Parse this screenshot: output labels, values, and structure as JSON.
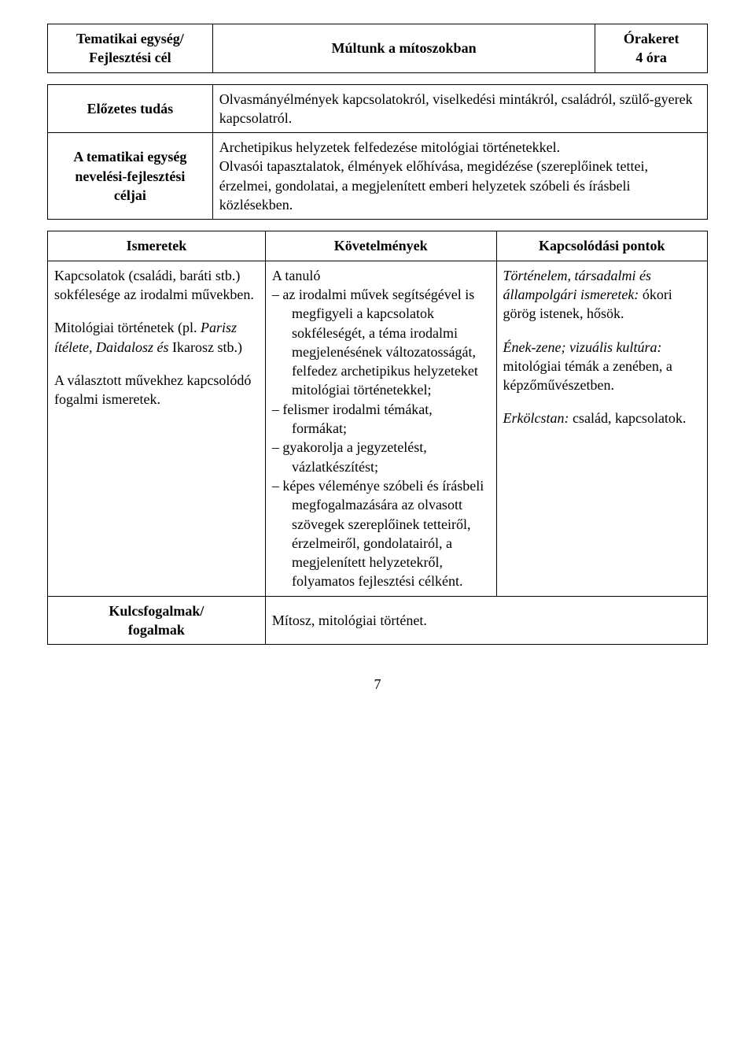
{
  "header": {
    "left_label_line1": "Tematikai egység/",
    "left_label_line2": "Fejlesztési cél",
    "title": "Múltunk a mítoszokban",
    "right_label_line1": "Órakeret",
    "right_label_line2": "4 óra"
  },
  "rows": {
    "elozetes_tudas_label": "Előzetes tudás",
    "elozetes_tudas_text": "Olvasmányélmények kapcsolatokról, viselkedési mintákról, családról, szülő-gyerek kapcsolatról.",
    "tematikai_label_line1": "A tematikai egység",
    "tematikai_label_line2": "nevelési-fejlesztési",
    "tematikai_label_line3": "céljai",
    "tematikai_text_p1": "Archetipikus helyzetek felfedezése mitológiai történetekkel.",
    "tematikai_text_p2": "Olvasói tapasztalatok, élmények előhívása, megidézése (szereplőinek tettei, érzelmei, gondolatai, a megjelenített emberi helyzetek szóbeli és írásbeli közlésekben."
  },
  "big_table": {
    "col1_header": "Ismeretek",
    "col2_header": "Követelmények",
    "col3_header": "Kapcsolódási pontok",
    "col1_p1a": "Kapcsolatok (családi, baráti stb.) sokfélesége az irodalmi művekben.",
    "col1_p2a": "Mitológiai történetek (pl. ",
    "col1_p2b": "Parisz ítélete, Daidalosz és ",
    "col1_p2c": "Ikarosz stb.)",
    "col1_p3": "A választott művekhez kapcsolódó fogalmi ismeretek.",
    "col2_intro": "A tanuló",
    "col2_items": [
      "az irodalmi művek segítségével is megfigyeli a kapcsolatok sokféleségét, a téma irodalmi megjelenésének változatosságát, felfedez archetipikus helyzeteket mitológiai történetekkel;",
      "felismer irodalmi témákat, formákat;",
      "gyakorolja a jegyzetelést, vázlatkészítést;",
      "képes véleménye szóbeli és írásbeli megfogalmazására az olvasott szövegek szereplőinek tetteiről, érzelmeiről, gondolatairól, a megjelenített helyzetekről, folyamatos fejlesztési célként."
    ],
    "col3_p1a": "Történelem, társadalmi és állampolgári ismeretek:",
    "col3_p1b": " ókori görög istenek, hősök.",
    "col3_p2a": "Ének-zene; vizuális kultúra:",
    "col3_p2b": " mitológiai témák a zenében, a képzőművészetben.",
    "col3_p3a": "Erkölcstan:",
    "col3_p3b": " család, kapcsolatok."
  },
  "bottom": {
    "label_line1": "Kulcsfogalmak/",
    "label_line2": "fogalmak",
    "text": "Mítosz, mitológiai történet."
  },
  "page_number": "7"
}
